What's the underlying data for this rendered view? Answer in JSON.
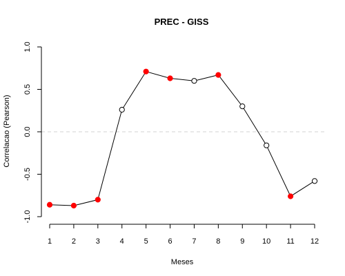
{
  "chart_data": {
    "type": "line",
    "title": "PREC - GISS",
    "xlabel": "Meses",
    "ylabel": "Correlacao (Pearson)",
    "x": [
      1,
      2,
      3,
      4,
      5,
      6,
      7,
      8,
      9,
      10,
      11,
      12
    ],
    "xticks": [
      "1",
      "2",
      "3",
      "4",
      "5",
      "6",
      "7",
      "8",
      "9",
      "10",
      "11",
      "12"
    ],
    "yticks": [
      "-1.0",
      "-0.5",
      "0.0",
      "0.5",
      "1.0"
    ],
    "ylim": [
      -1.0,
      1.0
    ],
    "xlim": [
      1,
      12
    ],
    "reference_line": {
      "y": 0.0,
      "style": "dashed",
      "color": "#d3d3d3"
    },
    "series": [
      {
        "values": [
          -0.86,
          -0.87,
          -0.8,
          0.26,
          0.71,
          0.63,
          0.6,
          0.67,
          0.3,
          -0.16,
          -0.76,
          -0.58
        ],
        "line_color": "#000000"
      }
    ],
    "point_styles": [
      "filled",
      "filled",
      "filled",
      "open",
      "filled",
      "filled",
      "open",
      "filled",
      "open",
      "open",
      "filled",
      "open"
    ],
    "filled_color": "#ff0000",
    "open_color": "#000000",
    "grid": false
  }
}
